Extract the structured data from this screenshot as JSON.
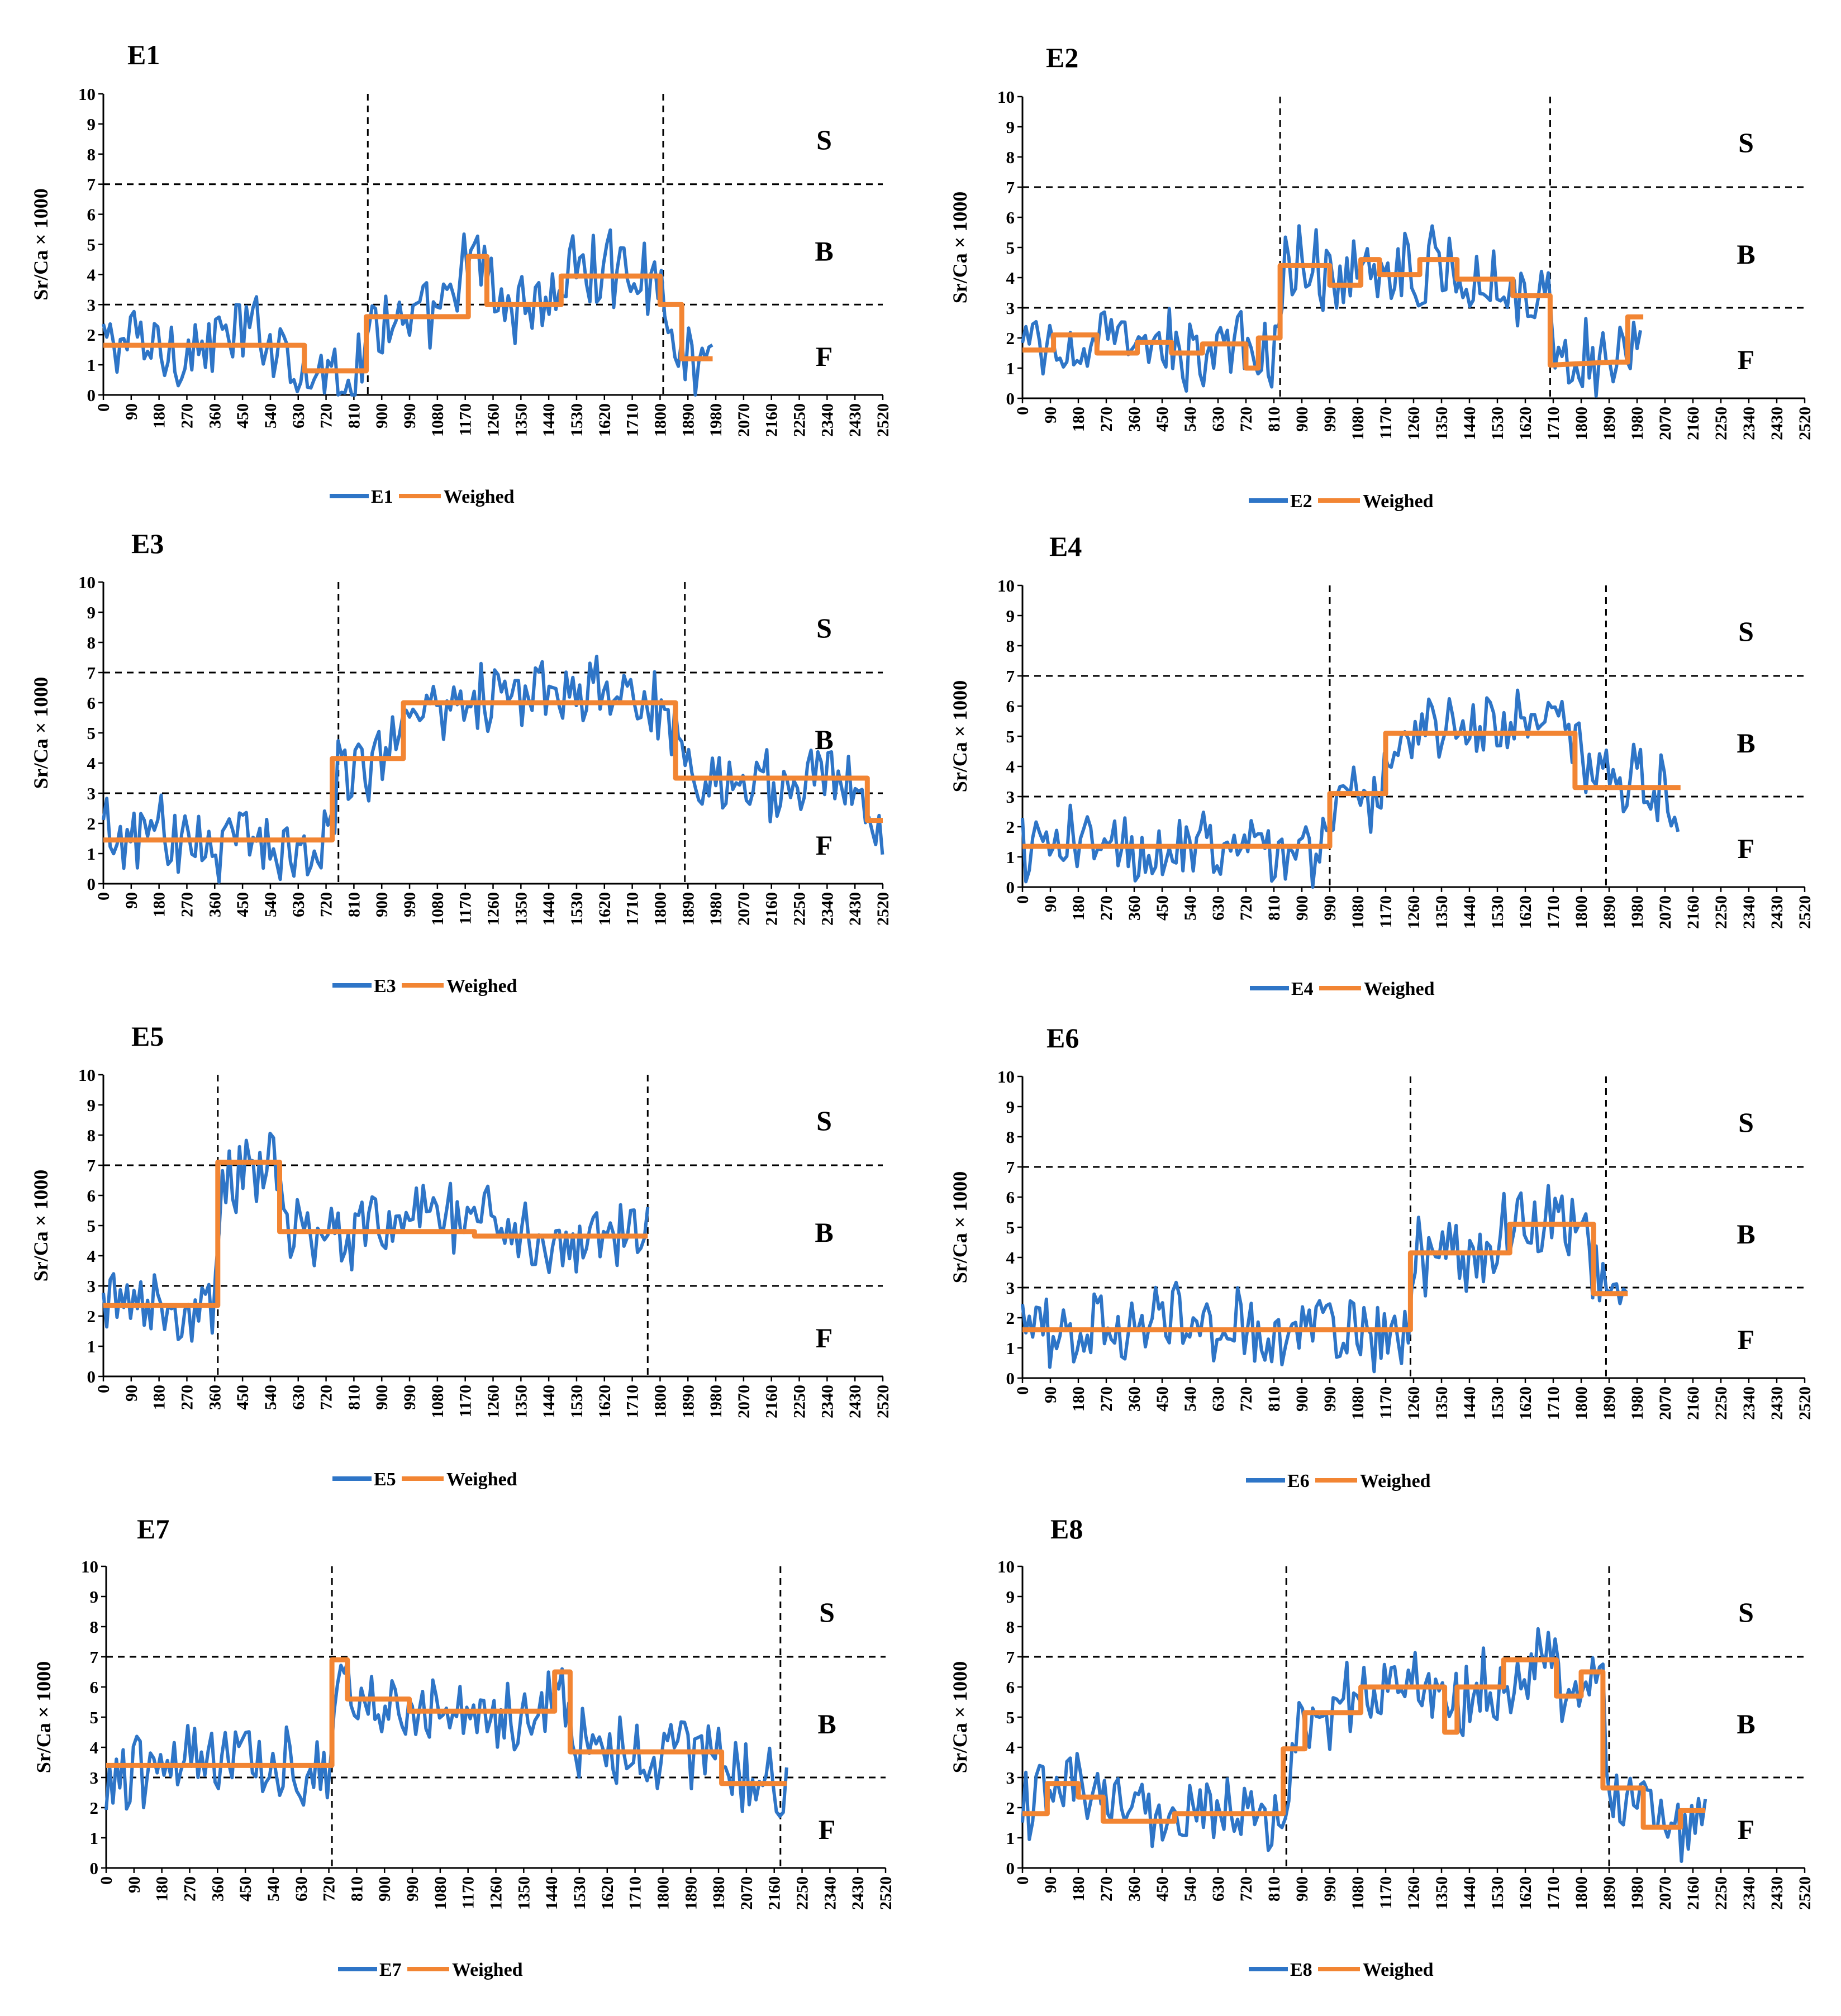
{
  "colors": {
    "series": "#2e75c7",
    "weighed": "#f28533"
  },
  "chart_data": [
    {
      "type": "line",
      "title": "E1",
      "ylabel": "Sr/Ca × 1000",
      "xlim": [
        0,
        2520
      ],
      "ylim": [
        0,
        10
      ],
      "xstep": 90,
      "hlines": [
        3,
        7
      ],
      "vlines": [
        855,
        1810
      ],
      "zones": [
        "S",
        "B",
        "F"
      ],
      "series_label": "E1",
      "weighed_label": "Weighed",
      "end": 1970,
      "profile": [
        [
          0,
          1.7
        ],
        [
          100,
          1.8
        ],
        [
          200,
          1.6
        ],
        [
          300,
          1.5
        ],
        [
          400,
          1.9
        ],
        [
          500,
          2.1
        ],
        [
          600,
          1.6
        ],
        [
          650,
          0.8
        ],
        [
          850,
          0.8
        ],
        [
          860,
          3.2
        ],
        [
          900,
          2.6
        ],
        [
          1000,
          2.2
        ],
        [
          1100,
          2.7
        ],
        [
          1170,
          4.2
        ],
        [
          1240,
          4.4
        ],
        [
          1270,
          3.0
        ],
        [
          1450,
          3.1
        ],
        [
          1500,
          4.1
        ],
        [
          1750,
          4.2
        ],
        [
          1810,
          3.2
        ],
        [
          1870,
          1.1
        ],
        [
          1970,
          1.2
        ]
      ],
      "weighed": [
        [
          0,
          1.65
        ],
        [
          650,
          1.65
        ],
        [
          650,
          0.8
        ],
        [
          850,
          0.8
        ],
        [
          850,
          2.6
        ],
        [
          1180,
          2.6
        ],
        [
          1180,
          4.6
        ],
        [
          1240,
          4.6
        ],
        [
          1240,
          3.0
        ],
        [
          1480,
          3.0
        ],
        [
          1480,
          3.95
        ],
        [
          1800,
          3.95
        ],
        [
          1800,
          3.0
        ],
        [
          1870,
          3.0
        ],
        [
          1870,
          1.2
        ],
        [
          1970,
          1.2
        ]
      ]
    },
    {
      "type": "line",
      "title": "E2",
      "ylabel": "Sr/Ca × 1000",
      "xlim": [
        0,
        2520
      ],
      "ylim": [
        0,
        10
      ],
      "xstep": 90,
      "hlines": [
        3,
        7
      ],
      "vlines": [
        830,
        1700
      ],
      "zones": [
        "S",
        "B",
        "F"
      ],
      "series_label": "E2",
      "weighed_label": "Weighed",
      "end": 2000,
      "profile": [
        [
          0,
          1.6
        ],
        [
          200,
          1.8
        ],
        [
          400,
          1.6
        ],
        [
          600,
          1.6
        ],
        [
          830,
          1.5
        ],
        [
          840,
          4.6
        ],
        [
          1000,
          4.2
        ],
        [
          1200,
          4.4
        ],
        [
          1400,
          4.3
        ],
        [
          1600,
          3.7
        ],
        [
          1700,
          3.1
        ],
        [
          1710,
          1.4
        ],
        [
          1900,
          1.2
        ],
        [
          2000,
          2.8
        ]
      ],
      "weighed": [
        [
          0,
          1.6
        ],
        [
          100,
          1.6
        ],
        [
          100,
          2.1
        ],
        [
          240,
          2.1
        ],
        [
          240,
          1.5
        ],
        [
          370,
          1.5
        ],
        [
          370,
          1.85
        ],
        [
          480,
          1.85
        ],
        [
          480,
          1.5
        ],
        [
          580,
          1.5
        ],
        [
          580,
          1.8
        ],
        [
          720,
          1.8
        ],
        [
          720,
          1.0
        ],
        [
          760,
          1.0
        ],
        [
          760,
          2.0
        ],
        [
          830,
          2.0
        ],
        [
          830,
          4.4
        ],
        [
          990,
          4.4
        ],
        [
          990,
          3.75
        ],
        [
          1090,
          3.75
        ],
        [
          1090,
          4.6
        ],
        [
          1150,
          4.6
        ],
        [
          1150,
          4.1
        ],
        [
          1280,
          4.1
        ],
        [
          1280,
          4.6
        ],
        [
          1400,
          4.6
        ],
        [
          1400,
          3.95
        ],
        [
          1580,
          3.95
        ],
        [
          1580,
          3.4
        ],
        [
          1700,
          3.4
        ],
        [
          1700,
          1.1
        ],
        [
          1900,
          1.2
        ],
        [
          1950,
          1.2
        ],
        [
          1950,
          2.7
        ],
        [
          2000,
          2.7
        ]
      ]
    },
    {
      "type": "line",
      "title": "E3",
      "ylabel": "Sr/Ca × 1000",
      "xlim": [
        0,
        2520
      ],
      "ylim": [
        0,
        10
      ],
      "xstep": 90,
      "hlines": [
        3,
        7
      ],
      "vlines": [
        760,
        1880
      ],
      "zones": [
        "S",
        "B",
        "F"
      ],
      "series_label": "E3",
      "weighed_label": "Weighed",
      "end": 2520,
      "profile": [
        [
          0,
          1.5
        ],
        [
          200,
          1.6
        ],
        [
          400,
          1.4
        ],
        [
          600,
          1.4
        ],
        [
          740,
          1.4
        ],
        [
          760,
          3.9
        ],
        [
          900,
          4.3
        ],
        [
          1000,
          5.8
        ],
        [
          1200,
          6.4
        ],
        [
          1400,
          6.2
        ],
        [
          1600,
          6.1
        ],
        [
          1700,
          6.4
        ],
        [
          1860,
          5.4
        ],
        [
          1880,
          3.4
        ],
        [
          2100,
          3.4
        ],
        [
          2400,
          3.7
        ],
        [
          2500,
          2.0
        ],
        [
          2520,
          1.8
        ]
      ],
      "weighed": [
        [
          0,
          1.45
        ],
        [
          740,
          1.45
        ],
        [
          740,
          4.15
        ],
        [
          970,
          4.15
        ],
        [
          970,
          6.0
        ],
        [
          1850,
          6.0
        ],
        [
          1850,
          3.5
        ],
        [
          2470,
          3.5
        ],
        [
          2470,
          2.1
        ],
        [
          2520,
          2.1
        ]
      ]
    },
    {
      "type": "line",
      "title": "E4",
      "ylabel": "Sr/Ca × 1000",
      "xlim": [
        0,
        2520
      ],
      "ylim": [
        0,
        10
      ],
      "xstep": 90,
      "hlines": [
        3,
        7
      ],
      "vlines": [
        990,
        1880
      ],
      "zones": [
        "S",
        "B",
        "F"
      ],
      "series_label": "E4",
      "weighed_label": "Weighed",
      "end": 2120,
      "profile": [
        [
          0,
          1.3
        ],
        [
          300,
          1.3
        ],
        [
          600,
          1.4
        ],
        [
          990,
          1.2
        ],
        [
          1000,
          3.0
        ],
        [
          1150,
          3.1
        ],
        [
          1200,
          5.2
        ],
        [
          1500,
          5.3
        ],
        [
          1700,
          5.4
        ],
        [
          1790,
          5.1
        ],
        [
          1800,
          3.5
        ],
        [
          2000,
          3.4
        ],
        [
          2120,
          3.0
        ]
      ],
      "weighed": [
        [
          0,
          1.35
        ],
        [
          990,
          1.35
        ],
        [
          990,
          3.1
        ],
        [
          1170,
          3.1
        ],
        [
          1170,
          5.1
        ],
        [
          1780,
          5.1
        ],
        [
          1780,
          3.3
        ],
        [
          2120,
          3.3
        ]
      ]
    },
    {
      "type": "line",
      "title": "E5",
      "ylabel": "Sr/Ca × 1000",
      "xlim": [
        0,
        2520
      ],
      "ylim": [
        0,
        10
      ],
      "xstep": 90,
      "hlines": [
        3,
        7
      ],
      "vlines": [
        370,
        1760
      ],
      "zones": [
        "S",
        "B",
        "F"
      ],
      "series_label": "E5",
      "weighed_label": "Weighed",
      "end": 1760,
      "profile": [
        [
          0,
          2.2
        ],
        [
          200,
          2.3
        ],
        [
          360,
          2.4
        ],
        [
          380,
          6.5
        ],
        [
          560,
          7.2
        ],
        [
          600,
          5.0
        ],
        [
          800,
          4.6
        ],
        [
          1000,
          5.2
        ],
        [
          1100,
          5.5
        ],
        [
          1250,
          5.6
        ],
        [
          1400,
          4.5
        ],
        [
          1600,
          4.5
        ],
        [
          1760,
          4.9
        ]
      ],
      "weighed": [
        [
          0,
          2.35
        ],
        [
          370,
          2.35
        ],
        [
          370,
          7.1
        ],
        [
          570,
          7.1
        ],
        [
          570,
          4.8
        ],
        [
          1200,
          4.8
        ],
        [
          1200,
          4.65
        ],
        [
          1760,
          4.65
        ]
      ]
    },
    {
      "type": "line",
      "title": "E6",
      "ylabel": "Sr/Ca × 1000",
      "xlim": [
        0,
        2520
      ],
      "ylim": [
        0,
        10
      ],
      "xstep": 90,
      "hlines": [
        3,
        7
      ],
      "vlines": [
        1250,
        1880
      ],
      "zones": [
        "S",
        "B",
        "F"
      ],
      "series_label": "E6",
      "weighed_label": "Weighed",
      "end": 1950,
      "profile": [
        [
          0,
          1.5
        ],
        [
          300,
          1.7
        ],
        [
          500,
          1.9
        ],
        [
          800,
          1.6
        ],
        [
          1000,
          1.7
        ],
        [
          1240,
          1.2
        ],
        [
          1260,
          4.2
        ],
        [
          1500,
          4.1
        ],
        [
          1600,
          5.3
        ],
        [
          1800,
          5.0
        ],
        [
          1860,
          3.0
        ],
        [
          1950,
          2.8
        ]
      ],
      "weighed": [
        [
          0,
          1.6
        ],
        [
          1250,
          1.6
        ],
        [
          1250,
          4.15
        ],
        [
          1570,
          4.15
        ],
        [
          1570,
          5.1
        ],
        [
          1840,
          5.1
        ],
        [
          1840,
          2.8
        ],
        [
          1950,
          2.8
        ]
      ]
    },
    {
      "type": "line",
      "title": "E7",
      "ylabel": "Sr/Ca × 1000",
      "xlim": [
        0,
        2520
      ],
      "ylim": [
        0,
        10
      ],
      "xstep": 90,
      "hlines": [
        3,
        7
      ],
      "vlines": [
        730,
        2180
      ],
      "zones": [
        "S",
        "B",
        "F"
      ],
      "series_label": "E7",
      "weighed_label": "Weighed",
      "end": 2200,
      "profile": [
        [
          0,
          2.8
        ],
        [
          200,
          3.5
        ],
        [
          400,
          3.4
        ],
        [
          600,
          3.6
        ],
        [
          720,
          3.0
        ],
        [
          760,
          6.3
        ],
        [
          900,
          5.6
        ],
        [
          1000,
          5.2
        ],
        [
          1300,
          5.2
        ],
        [
          1470,
          5.6
        ],
        [
          1500,
          5.8
        ],
        [
          1530,
          4.0
        ],
        [
          1800,
          3.7
        ],
        [
          1950,
          4.0
        ],
        [
          2010,
          2.9
        ],
        [
          2200,
          2.5
        ]
      ],
      "weighed": [
        [
          0,
          3.4
        ],
        [
          730,
          3.4
        ],
        [
          730,
          6.9
        ],
        [
          780,
          6.9
        ],
        [
          780,
          5.6
        ],
        [
          980,
          5.6
        ],
        [
          980,
          5.2
        ],
        [
          1450,
          5.2
        ],
        [
          1450,
          6.5
        ],
        [
          1500,
          6.5
        ],
        [
          1500,
          3.85
        ],
        [
          1990,
          3.85
        ],
        [
          1990,
          2.8
        ],
        [
          2200,
          2.8
        ]
      ]
    },
    {
      "type": "line",
      "title": "E8",
      "ylabel": "Sr/Ca × 1000",
      "xlim": [
        0,
        2520
      ],
      "ylim": [
        0,
        10
      ],
      "xstep": 90,
      "hlines": [
        3,
        7
      ],
      "vlines": [
        850,
        1890
      ],
      "zones": [
        "S",
        "B",
        "F"
      ],
      "series_label": "E8",
      "weighed_label": "Weighed",
      "end": 2200,
      "profile": [
        [
          0,
          2.0
        ],
        [
          100,
          2.6
        ],
        [
          250,
          2.2
        ],
        [
          300,
          1.7
        ],
        [
          500,
          1.7
        ],
        [
          850,
          1.8
        ],
        [
          860,
          3.6
        ],
        [
          950,
          5.0
        ],
        [
          1100,
          5.9
        ],
        [
          1300,
          5.8
        ],
        [
          1380,
          4.8
        ],
        [
          1450,
          6.0
        ],
        [
          1600,
          6.7
        ],
        [
          1700,
          6.9
        ],
        [
          1750,
          5.8
        ],
        [
          1870,
          6.4
        ],
        [
          1890,
          2.6
        ],
        [
          2020,
          2.2
        ],
        [
          2100,
          1.5
        ],
        [
          2200,
          1.8
        ]
      ],
      "weighed": [
        [
          0,
          1.8
        ],
        [
          80,
          1.8
        ],
        [
          80,
          2.8
        ],
        [
          180,
          2.8
        ],
        [
          180,
          2.35
        ],
        [
          260,
          2.35
        ],
        [
          260,
          1.55
        ],
        [
          490,
          1.55
        ],
        [
          490,
          1.8
        ],
        [
          840,
          1.8
        ],
        [
          840,
          3.95
        ],
        [
          910,
          3.95
        ],
        [
          910,
          5.15
        ],
        [
          1090,
          5.15
        ],
        [
          1090,
          6.0
        ],
        [
          1360,
          6.0
        ],
        [
          1360,
          4.5
        ],
        [
          1400,
          4.5
        ],
        [
          1400,
          6.0
        ],
        [
          1550,
          6.0
        ],
        [
          1550,
          6.9
        ],
        [
          1720,
          6.9
        ],
        [
          1720,
          5.7
        ],
        [
          1800,
          5.7
        ],
        [
          1800,
          6.5
        ],
        [
          1870,
          6.5
        ],
        [
          1870,
          2.65
        ],
        [
          2000,
          2.65
        ],
        [
          2000,
          1.35
        ],
        [
          2120,
          1.35
        ],
        [
          2120,
          1.9
        ],
        [
          2200,
          1.9
        ]
      ]
    }
  ]
}
